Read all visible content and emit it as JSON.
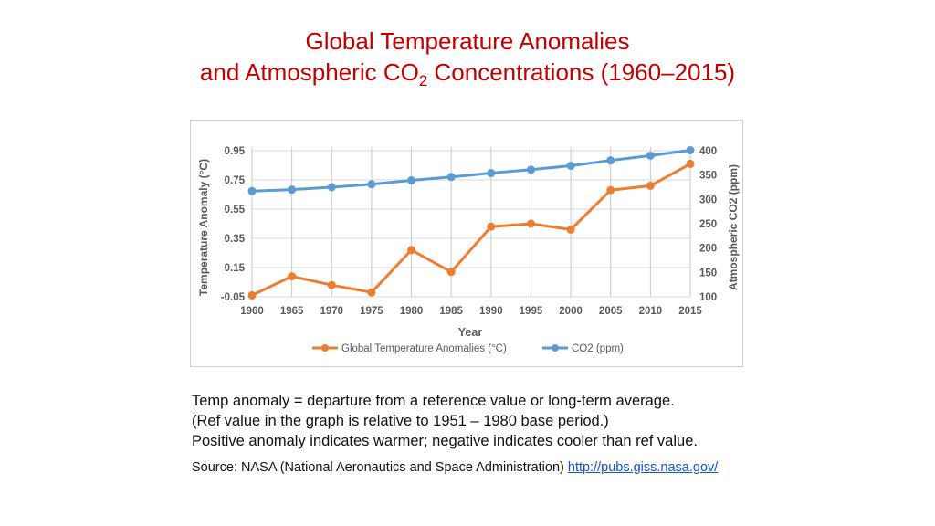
{
  "slide": {
    "title_line1": "Global Temperature Anomalies",
    "title_line2_prefix": "and Atmospheric CO",
    "title_line2_sub": "2",
    "title_line2_suffix": " Concentrations (1960–2015)",
    "title_color": "#c00000"
  },
  "notes": [
    "Temp anomaly = departure from a reference value or long-term average.",
    "(Ref value in the graph is relative to 1951 – 1980 base period.)",
    "Positive anomaly indicates warmer; negative indicates cooler than ref value."
  ],
  "source": {
    "label": "Source: NASA (National Aeronautics and Space Administration) ",
    "link_text": "http://pubs.giss.nasa.gov/"
  },
  "chart_data": {
    "type": "line",
    "title": "",
    "xlabel": "Year",
    "ylabel": "Temperature Anomaly (°C)",
    "y2label": "Atmospheric CO2  (ppm)",
    "x": [
      1960,
      1965,
      1970,
      1975,
      1980,
      1985,
      1990,
      1995,
      2000,
      2005,
      2010,
      2015
    ],
    "x_tick_labels": [
      "1960",
      "1965",
      "1970",
      "1975",
      "1980",
      "1985",
      "1990",
      "1995",
      "2000",
      "2005",
      "2010",
      "2015"
    ],
    "ylim": [
      -0.05,
      0.95
    ],
    "y_ticks": [
      -0.05,
      0.15,
      0.35,
      0.55,
      0.75,
      0.95
    ],
    "y_tick_labels": [
      "-0.05",
      "0.15",
      "0.35",
      "0.55",
      "0.75",
      "0.95"
    ],
    "y2lim": [
      100,
      400
    ],
    "y2_ticks": [
      100,
      150,
      200,
      250,
      300,
      350,
      400
    ],
    "y2_tick_labels": [
      "100",
      "150",
      "200",
      "250",
      "300",
      "350",
      "400"
    ],
    "grid": true,
    "legend_position": "bottom",
    "series": [
      {
        "name": "Global Temperature Anomalies (°C)",
        "axis": "left",
        "color": "#ed7d31",
        "values": [
          -0.04,
          0.09,
          0.03,
          -0.02,
          0.27,
          0.12,
          0.43,
          0.45,
          0.41,
          0.68,
          0.71,
          0.86
        ]
      },
      {
        "name": "CO2 (ppm)",
        "axis": "right",
        "color": "#5b9bd5",
        "values": [
          317,
          320,
          325,
          331,
          339,
          346,
          354,
          361,
          369,
          380,
          390,
          401
        ]
      }
    ]
  }
}
